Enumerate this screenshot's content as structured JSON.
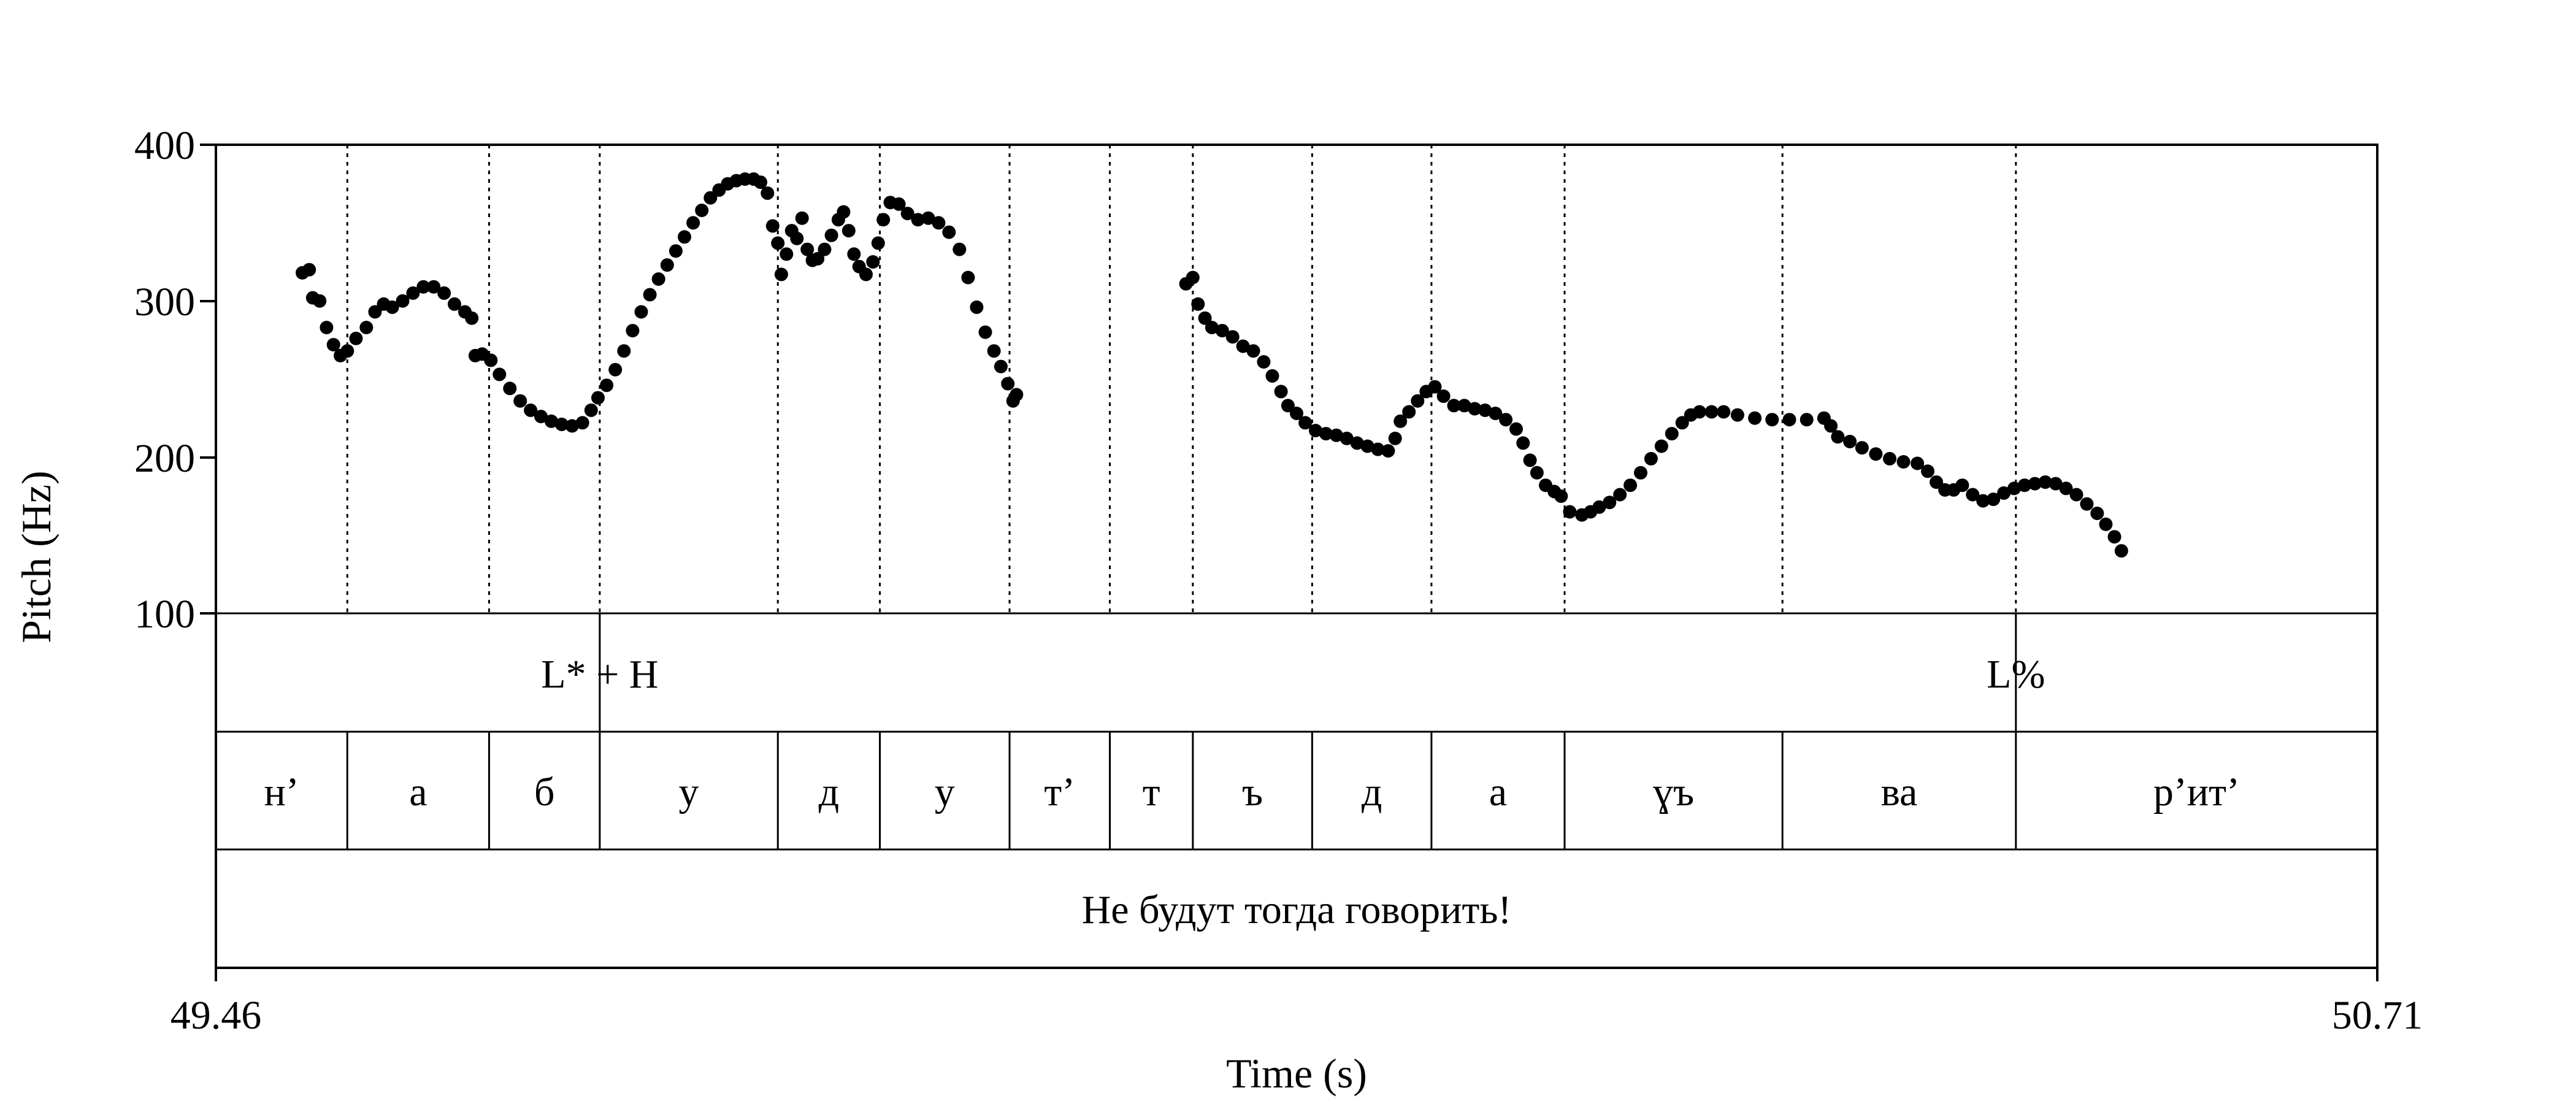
{
  "chart_data": {
    "type": "scatter",
    "title": "",
    "xlabel": "Time (s)",
    "ylabel": "Pitch (Hz)",
    "xlim": [
      49.46,
      50.71
    ],
    "ylim": [
      100,
      400
    ],
    "x_tick_labels": [
      "49.46",
      "50.71"
    ],
    "y_ticks": [
      100,
      200,
      300,
      400
    ],
    "y_tick_labels": [
      "100",
      "200",
      "300",
      "400"
    ],
    "grid": false,
    "guide_times": [
      49.536,
      49.618,
      49.682,
      49.785,
      49.844,
      49.919,
      49.977,
      50.025,
      50.094,
      50.163,
      50.24,
      50.366,
      50.501
    ],
    "tiers": {
      "tones": [
        {
          "label": "L* + H",
          "time": 49.682
        },
        {
          "label": "L%",
          "time": 50.501
        }
      ],
      "segments": [
        {
          "label": "н’",
          "start": 49.46,
          "end": 49.536
        },
        {
          "label": "а",
          "start": 49.536,
          "end": 49.618
        },
        {
          "label": "б",
          "start": 49.618,
          "end": 49.682
        },
        {
          "label": "у",
          "start": 49.682,
          "end": 49.785
        },
        {
          "label": "д",
          "start": 49.785,
          "end": 49.844
        },
        {
          "label": "у",
          "start": 49.844,
          "end": 49.919
        },
        {
          "label": "т’",
          "start": 49.919,
          "end": 49.977
        },
        {
          "label": "т",
          "start": 49.977,
          "end": 50.025
        },
        {
          "label": "ъ",
          "start": 50.025,
          "end": 50.094
        },
        {
          "label": "д",
          "start": 50.094,
          "end": 50.163
        },
        {
          "label": "а",
          "start": 50.163,
          "end": 50.24
        },
        {
          "label": "ɣъ",
          "start": 50.24,
          "end": 50.366
        },
        {
          "label": "ва",
          "start": 50.366,
          "end": 50.501
        },
        {
          "label": "р’ит’",
          "start": 50.501,
          "end": 50.71
        }
      ],
      "sentence": {
        "label": "Не будут тогда говорить!",
        "start": 49.46,
        "end": 50.71
      }
    },
    "series": [
      {
        "pitch_contour": [
          [
            49.51,
            318
          ],
          [
            49.514,
            320
          ],
          [
            49.516,
            302
          ],
          [
            49.52,
            300
          ],
          [
            49.524,
            283
          ],
          [
            49.528,
            272
          ],
          [
            49.532,
            265
          ],
          [
            49.536,
            268
          ],
          [
            49.541,
            276
          ],
          [
            49.547,
            283
          ],
          [
            49.552,
            293
          ],
          [
            49.557,
            298
          ],
          [
            49.562,
            296
          ],
          [
            49.568,
            300
          ],
          [
            49.574,
            305
          ],
          [
            49.58,
            309
          ],
          [
            49.586,
            309
          ],
          [
            49.592,
            305
          ],
          [
            49.598,
            298
          ],
          [
            49.604,
            293
          ],
          [
            49.608,
            289
          ],
          [
            49.61,
            265
          ],
          [
            49.614,
            266
          ],
          [
            49.619,
            262
          ],
          [
            49.624,
            253
          ],
          [
            49.63,
            244
          ],
          [
            49.636,
            236
          ],
          [
            49.642,
            230
          ],
          [
            49.648,
            226
          ],
          [
            49.654,
            223
          ],
          [
            49.66,
            221
          ],
          [
            49.666,
            220
          ],
          [
            49.672,
            222
          ],
          [
            49.677,
            230
          ],
          [
            49.681,
            238
          ],
          [
            49.686,
            246
          ],
          [
            49.691,
            256
          ],
          [
            49.696,
            268
          ],
          [
            49.701,
            281
          ],
          [
            49.706,
            293
          ],
          [
            49.711,
            304
          ],
          [
            49.716,
            314
          ],
          [
            49.721,
            323
          ],
          [
            49.726,
            332
          ],
          [
            49.731,
            341
          ],
          [
            49.736,
            350
          ],
          [
            49.741,
            358
          ],
          [
            49.746,
            366
          ],
          [
            49.751,
            371
          ],
          [
            49.756,
            375
          ],
          [
            49.761,
            377
          ],
          [
            49.766,
            378
          ],
          [
            49.771,
            378
          ],
          [
            49.775,
            376
          ],
          [
            49.779,
            369
          ],
          [
            49.782,
            348
          ],
          [
            49.785,
            337
          ],
          [
            49.787,
            317
          ],
          [
            49.79,
            330
          ],
          [
            49.793,
            345
          ],
          [
            49.796,
            340
          ],
          [
            49.799,
            353
          ],
          [
            49.802,
            333
          ],
          [
            49.805,
            326
          ],
          [
            49.808,
            327
          ],
          [
            49.812,
            333
          ],
          [
            49.816,
            342
          ],
          [
            49.82,
            352
          ],
          [
            49.823,
            357
          ],
          [
            49.826,
            345
          ],
          [
            49.829,
            330
          ],
          [
            49.832,
            322
          ],
          [
            49.836,
            317
          ],
          [
            49.84,
            325
          ],
          [
            49.843,
            337
          ],
          [
            49.846,
            352
          ],
          [
            49.85,
            363
          ],
          [
            49.855,
            362
          ],
          [
            49.86,
            356
          ],
          [
            49.866,
            352
          ],
          [
            49.872,
            353
          ],
          [
            49.878,
            350
          ],
          [
            49.884,
            344
          ],
          [
            49.89,
            333
          ],
          [
            49.895,
            315
          ],
          [
            49.9,
            296
          ],
          [
            49.905,
            280
          ],
          [
            49.91,
            268
          ],
          [
            49.914,
            258
          ],
          [
            49.918,
            247
          ],
          [
            49.921,
            236
          ],
          [
            49.923,
            240
          ],
          [
            50.021,
            311
          ],
          [
            50.025,
            315
          ],
          [
            50.028,
            298
          ],
          [
            50.032,
            289
          ],
          [
            50.036,
            283
          ],
          [
            50.042,
            281
          ],
          [
            50.048,
            277
          ],
          [
            50.054,
            271
          ],
          [
            50.06,
            268
          ],
          [
            50.066,
            261
          ],
          [
            50.071,
            252
          ],
          [
            50.076,
            242
          ],
          [
            50.08,
            233
          ],
          [
            50.085,
            228
          ],
          [
            50.09,
            222
          ],
          [
            50.096,
            217
          ],
          [
            50.102,
            215
          ],
          [
            50.108,
            214
          ],
          [
            50.114,
            212
          ],
          [
            50.12,
            209
          ],
          [
            50.126,
            207
          ],
          [
            50.132,
            205
          ],
          [
            50.138,
            204
          ],
          [
            50.142,
            212
          ],
          [
            50.145,
            223
          ],
          [
            50.15,
            229
          ],
          [
            50.155,
            236
          ],
          [
            50.16,
            242
          ],
          [
            50.165,
            245
          ],
          [
            50.17,
            239
          ],
          [
            50.176,
            233
          ],
          [
            50.182,
            233
          ],
          [
            50.188,
            231
          ],
          [
            50.194,
            230
          ],
          [
            50.2,
            228
          ],
          [
            50.206,
            224
          ],
          [
            50.212,
            218
          ],
          [
            50.216,
            209
          ],
          [
            50.22,
            198
          ],
          [
            50.224,
            190
          ],
          [
            50.229,
            182
          ],
          [
            50.234,
            178
          ],
          [
            50.238,
            175
          ],
          [
            50.243,
            165
          ],
          [
            50.25,
            163
          ],
          [
            50.255,
            165
          ],
          [
            50.26,
            168
          ],
          [
            50.266,
            171
          ],
          [
            50.272,
            176
          ],
          [
            50.278,
            182
          ],
          [
            50.284,
            190
          ],
          [
            50.29,
            199
          ],
          [
            50.296,
            207
          ],
          [
            50.302,
            215
          ],
          [
            50.308,
            222
          ],
          [
            50.313,
            227
          ],
          [
            50.318,
            229
          ],
          [
            50.325,
            229
          ],
          [
            50.332,
            229
          ],
          [
            50.34,
            227
          ],
          [
            50.35,
            225
          ],
          [
            50.36,
            224
          ],
          [
            50.37,
            224
          ],
          [
            50.38,
            224
          ],
          [
            50.39,
            225
          ],
          [
            50.394,
            220
          ],
          [
            50.398,
            213
          ],
          [
            50.405,
            210
          ],
          [
            50.412,
            206
          ],
          [
            50.42,
            202
          ],
          [
            50.428,
            199
          ],
          [
            50.436,
            197
          ],
          [
            50.444,
            196
          ],
          [
            50.45,
            191
          ],
          [
            50.455,
            184
          ],
          [
            50.46,
            179
          ],
          [
            50.465,
            179
          ],
          [
            50.47,
            182
          ],
          [
            50.476,
            176
          ],
          [
            50.482,
            172
          ],
          [
            50.488,
            173
          ],
          [
            50.494,
            177
          ],
          [
            50.5,
            180
          ],
          [
            50.506,
            182
          ],
          [
            50.512,
            183
          ],
          [
            50.518,
            184
          ],
          [
            50.524,
            183
          ],
          [
            50.53,
            180
          ],
          [
            50.536,
            176
          ],
          [
            50.542,
            170
          ],
          [
            50.548,
            164
          ],
          [
            50.553,
            157
          ],
          [
            50.558,
            149
          ],
          [
            50.562,
            140
          ]
        ]
      }
    ]
  }
}
